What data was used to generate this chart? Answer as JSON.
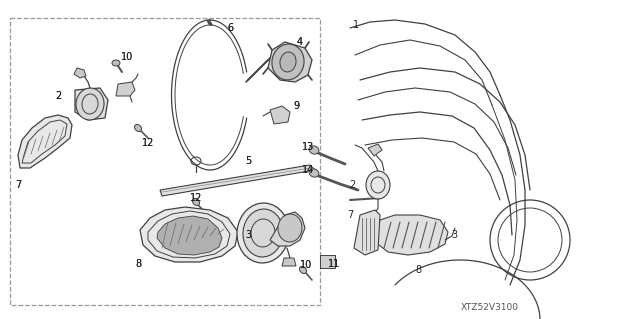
{
  "bg_color": "#ffffff",
  "diagram_code": "XTZ52V3100",
  "line_color": "#404040",
  "box_line_color": "#888888",
  "text_color": "#222222",
  "label_fontsize": 7.0,
  "code_fontsize": 6.5
}
